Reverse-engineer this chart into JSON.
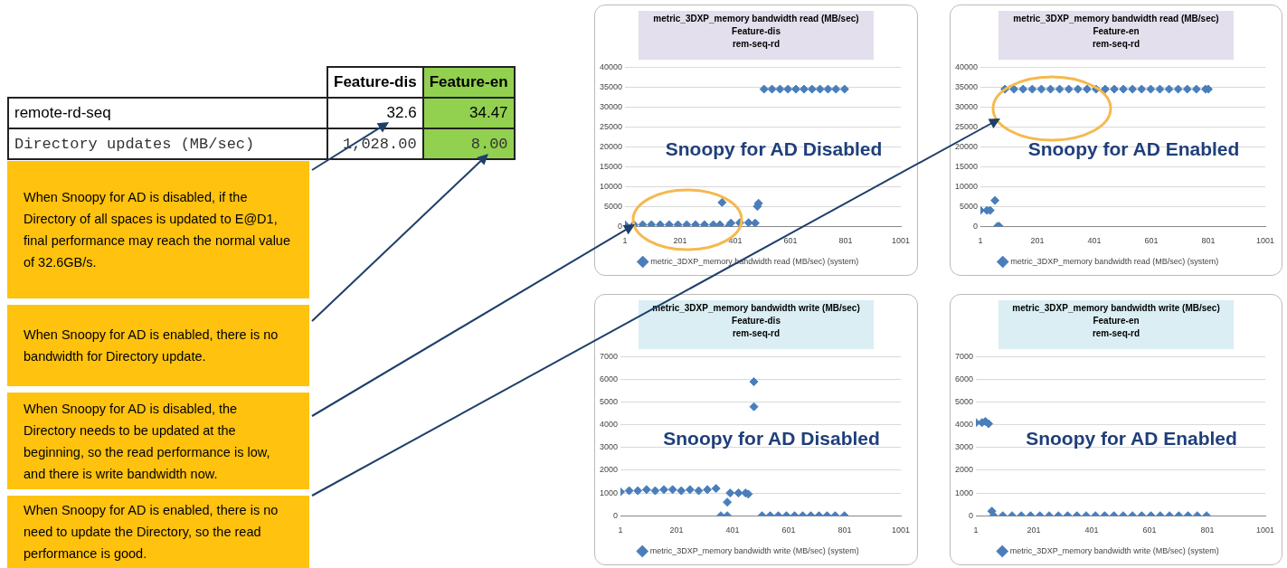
{
  "chart_data": [
    {
      "type": "other",
      "annotations": [
        "Feature-dis",
        "Feature-en",
        "remote-rd-seq",
        "32.6",
        "34.47",
        "Directory updates (MB/sec)",
        "1,028.00",
        "8.00",
        "When Snoopy for AD is disabled, if the Directory of all spaces is updated to E@D1, final performance may reach the normal value of 32.6GB/s.",
        "When Snoopy for AD is enabled, there is no bandwidth for Directory update.",
        "When Snoopy for AD is disabled, the Directory needs to be updated at the beginning, so the read performance is low, and there is write bandwidth now.",
        "When Snoopy for AD is enabled, there is no need to update the Directory, so the read performance is good."
      ]
    },
    {
      "type": "scatter",
      "title": "metric_3DXP_memory bandwidth read (MB/sec)\nFeature-dis\nrem-seq-rd",
      "annotations": [
        "Snoopy for AD Disabled"
      ],
      "marker": "diamond",
      "legend": "bottom",
      "grid": "y",
      "xlim": [
        1,
        1001
      ],
      "xticks": [
        1,
        201,
        401,
        601,
        801,
        1001
      ],
      "ylim": [
        0,
        40000
      ],
      "yticks": [
        0,
        5000,
        10000,
        15000,
        20000,
        25000,
        30000,
        35000,
        40000
      ],
      "series": [
        {
          "name": "metric_3DXP_memory bandwidth read (MB/sec) (system)",
          "color": "#4a7ebb",
          "x": [
            1,
            33,
            65,
            97,
            129,
            161,
            193,
            225,
            257,
            289,
            321,
            345,
            353,
            377,
            385,
            417,
            449,
            473,
            481,
            485,
            505,
            534,
            563,
            592,
            621,
            650,
            679,
            708,
            737,
            766,
            797
          ],
          "values": [
            400,
            400,
            400,
            400,
            400,
            400,
            400,
            400,
            400,
            400,
            400,
            400,
            6000,
            0,
            800,
            900,
            900,
            800,
            5000,
            5800,
            34500,
            34500,
            34500,
            34500,
            34500,
            34500,
            34500,
            34500,
            34500,
            34500,
            34500
          ]
        }
      ]
    },
    {
      "type": "scatter",
      "title": "metric_3DXP_memory bandwidth read (MB/sec)\nFeature-en\nrem-seq-rd",
      "annotations": [
        "Snoopy for AD Enabled"
      ],
      "marker": "diamond",
      "legend": "bottom",
      "grid": "y",
      "xlim": [
        1,
        1001
      ],
      "xticks": [
        1,
        201,
        401,
        601,
        801,
        1001
      ],
      "ylim": [
        0,
        40000
      ],
      "yticks": [
        0,
        5000,
        10000,
        15000,
        20000,
        25000,
        30000,
        35000,
        40000
      ],
      "series": [
        {
          "name": "metric_3DXP_memory bandwidth read (MB/sec) (system)",
          "color": "#4a7ebb",
          "x": [
            1,
            24,
            35,
            52,
            61,
            67,
            87,
            119,
            151,
            183,
            215,
            247,
            279,
            311,
            343,
            375,
            407,
            439,
            471,
            503,
            535,
            567,
            599,
            631,
            663,
            695,
            727,
            759,
            791,
            801
          ],
          "values": [
            4000,
            4000,
            4000,
            6500,
            0,
            0,
            34500,
            34500,
            34500,
            34500,
            34500,
            34500,
            34500,
            34500,
            34500,
            34500,
            34500,
            34500,
            34500,
            34500,
            34500,
            34500,
            34500,
            34500,
            34500,
            34500,
            34500,
            34500,
            34500,
            34500
          ]
        }
      ]
    },
    {
      "type": "scatter",
      "title": "metric_3DXP_memory bandwidth write (MB/sec)\nFeature-dis\nrem-seq-rd",
      "annotations": [
        "Snoopy for AD Disabled"
      ],
      "marker": "diamond",
      "legend": "bottom",
      "grid": "y",
      "xlim": [
        1,
        1001
      ],
      "xticks": [
        1,
        201,
        401,
        601,
        801,
        1001
      ],
      "ylim": [
        0,
        7000
      ],
      "yticks": [
        0,
        1000,
        2000,
        3000,
        4000,
        5000,
        6000,
        7000
      ],
      "series": [
        {
          "name": "metric_3DXP_memory bandwidth write (MB/sec) (system)",
          "color": "#4a7ebb",
          "x": [
            1,
            32,
            63,
            94,
            125,
            156,
            187,
            218,
            249,
            280,
            311,
            342,
            359,
            382,
            382,
            392,
            422,
            447,
            457,
            477,
            477,
            506,
            535,
            564,
            593,
            622,
            651,
            680,
            709,
            738,
            767,
            800
          ],
          "values": [
            1050,
            1100,
            1100,
            1150,
            1100,
            1150,
            1150,
            1100,
            1150,
            1100,
            1150,
            1200,
            0,
            0,
            600,
            1000,
            1000,
            1000,
            950,
            5900,
            4800,
            0,
            0,
            0,
            0,
            0,
            0,
            0,
            0,
            0,
            0,
            0
          ]
        }
      ]
    },
    {
      "type": "scatter",
      "title": "metric_3DXP_memory bandwidth write (MB/sec)\nFeature-en\nrem-seq-rd",
      "annotations": [
        "Snoopy for AD Enabled"
      ],
      "marker": "diamond",
      "legend": "bottom",
      "grid": "y",
      "xlim": [
        1,
        1001
      ],
      "xticks": [
        1,
        201,
        401,
        601,
        801,
        1001
      ],
      "ylim": [
        0,
        7000
      ],
      "yticks": [
        0,
        1000,
        2000,
        3000,
        4000,
        5000,
        6000,
        7000
      ],
      "series": [
        {
          "name": "metric_3DXP_memory bandwidth write (MB/sec) (system)",
          "color": "#4a7ebb",
          "x": [
            1,
            22,
            34,
            45,
            56,
            62,
            94,
            126,
            158,
            190,
            222,
            254,
            286,
            318,
            350,
            382,
            414,
            446,
            478,
            510,
            542,
            574,
            606,
            638,
            670,
            702,
            734,
            766,
            798
          ],
          "values": [
            4100,
            4100,
            4150,
            4050,
            200,
            0,
            0,
            0,
            0,
            0,
            0,
            0,
            0,
            0,
            0,
            0,
            0,
            0,
            0,
            0,
            0,
            0,
            0,
            0,
            0,
            0,
            0,
            0,
            0
          ]
        }
      ]
    }
  ]
}
